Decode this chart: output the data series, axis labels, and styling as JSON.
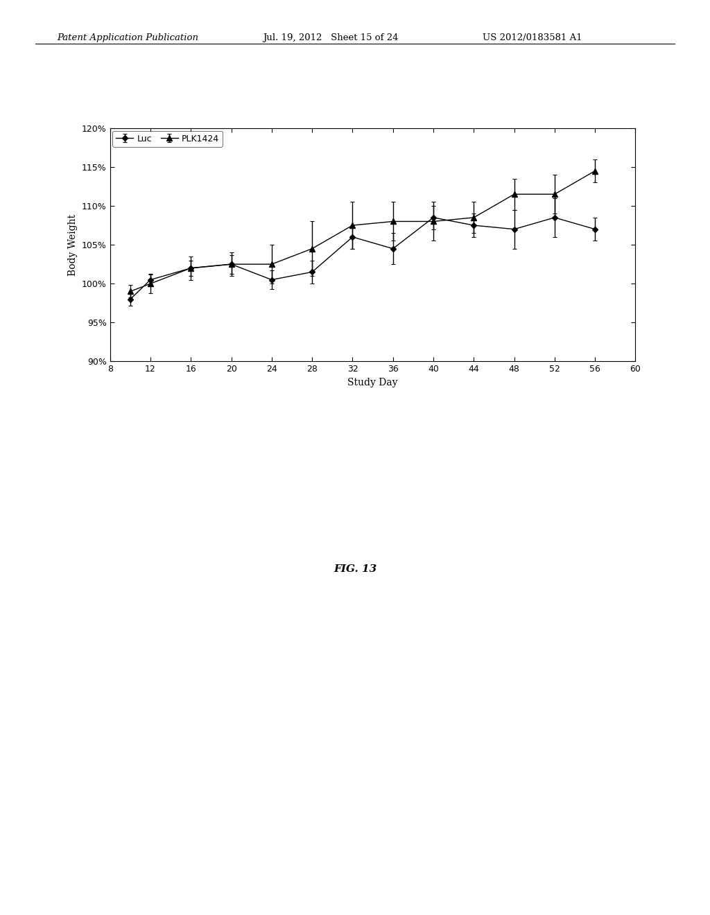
{
  "title": "",
  "xlabel": "Study Day",
  "ylabel": "Body Weight",
  "xlim": [
    8,
    60
  ],
  "ylim": [
    90,
    120
  ],
  "xticks": [
    8,
    12,
    16,
    20,
    24,
    28,
    32,
    36,
    40,
    44,
    48,
    52,
    56,
    60
  ],
  "yticks": [
    90,
    95,
    100,
    105,
    110,
    115,
    120
  ],
  "luc_x": [
    10,
    12,
    16,
    20,
    24,
    28,
    32,
    36,
    40,
    44,
    48,
    52,
    56
  ],
  "luc_y": [
    98.0,
    100.5,
    102.0,
    102.5,
    100.5,
    101.5,
    106.0,
    104.5,
    108.5,
    107.5,
    107.0,
    108.5,
    107.0
  ],
  "luc_yerr": [
    0.8,
    0.8,
    1.0,
    1.2,
    1.2,
    1.5,
    1.5,
    2.0,
    1.5,
    1.5,
    2.5,
    2.5,
    1.5
  ],
  "plk_x": [
    10,
    12,
    16,
    20,
    24,
    28,
    32,
    36,
    40,
    44,
    48,
    52,
    56
  ],
  "plk_y": [
    99.0,
    100.0,
    102.0,
    102.5,
    102.5,
    104.5,
    107.5,
    108.0,
    108.0,
    108.5,
    111.5,
    111.5,
    114.5
  ],
  "plk_yerr": [
    0.8,
    1.2,
    1.5,
    1.5,
    2.5,
    3.5,
    3.0,
    2.5,
    2.5,
    2.0,
    2.0,
    2.5,
    1.5
  ],
  "luc_color": "#000000",
  "plk_color": "#000000",
  "luc_label": "Luc",
  "plk_label": "PLK1424",
  "background_color": "#ffffff",
  "fig_caption": "FIG. 13",
  "header_left": "Patent Application Publication",
  "header_center": "Jul. 19, 2012   Sheet 15 of 24",
  "header_right": "US 2012/0183581 A1"
}
